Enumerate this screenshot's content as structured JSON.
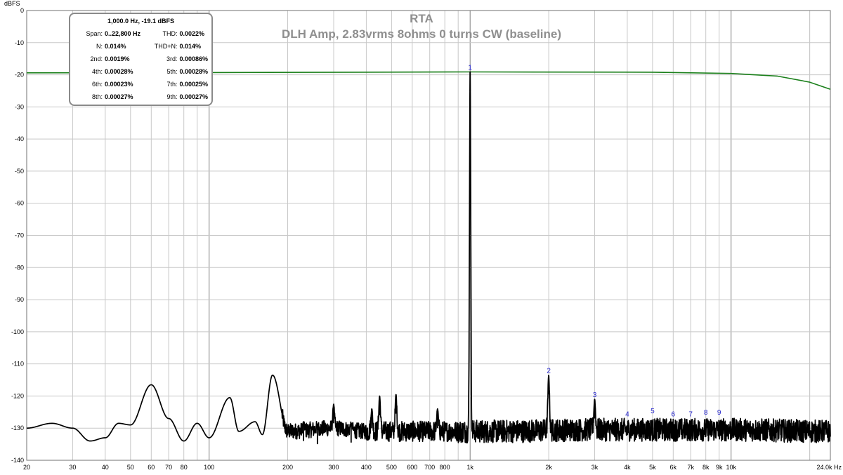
{
  "chart_data": {
    "type": "line",
    "title": "RTA",
    "subtitle": "DLH Amp, 2.83vrms 8ohms 0 turns CW (baseline)",
    "ylabel": "dBFS",
    "xlabel_unit": "Hz",
    "x_scale": "log",
    "xlim": [
      20,
      24000
    ],
    "ylim": [
      -140,
      0
    ],
    "y_ticks": [
      0,
      -10,
      -20,
      -30,
      -40,
      -50,
      -60,
      -70,
      -80,
      -90,
      -100,
      -110,
      -120,
      -130,
      -140
    ],
    "x_ticks": [
      {
        "v": 20,
        "label": "20"
      },
      {
        "v": 30,
        "label": "30"
      },
      {
        "v": 40,
        "label": "40"
      },
      {
        "v": 50,
        "label": "50"
      },
      {
        "v": 60,
        "label": "60"
      },
      {
        "v": 70,
        "label": "70"
      },
      {
        "v": 80,
        "label": "80"
      },
      {
        "v": 100,
        "label": "100"
      },
      {
        "v": 200,
        "label": "200"
      },
      {
        "v": 300,
        "label": "300"
      },
      {
        "v": 400,
        "label": "400"
      },
      {
        "v": 500,
        "label": "500"
      },
      {
        "v": 600,
        "label": "600"
      },
      {
        "v": 700,
        "label": "700"
      },
      {
        "v": 800,
        "label": "800"
      },
      {
        "v": 1000,
        "label": "1k"
      },
      {
        "v": 2000,
        "label": "2k"
      },
      {
        "v": 3000,
        "label": "3k"
      },
      {
        "v": 4000,
        "label": "4k"
      },
      {
        "v": 5000,
        "label": "5k"
      },
      {
        "v": 6000,
        "label": "6k"
      },
      {
        "v": 7000,
        "label": "7k"
      },
      {
        "v": 8000,
        "label": "8k"
      },
      {
        "v": 9000,
        "label": "9k"
      },
      {
        "v": 10000,
        "label": "10k"
      },
      {
        "v": 24000,
        "label": "24.0k Hz"
      }
    ],
    "grid": true,
    "colors": {
      "spectrum": "#000000",
      "level": "#1a7f1a",
      "harmonic_marker": "#2222cc",
      "title": "#8f8f8f",
      "grid": "#c8c8c8",
      "grid_major": "#808080"
    },
    "series": [
      {
        "key": "level",
        "points": [
          [
            20,
            -19.4
          ],
          [
            100,
            -19.3
          ],
          [
            1000,
            -19.1
          ],
          [
            5000,
            -19.2
          ],
          [
            10000,
            -19.6
          ],
          [
            15000,
            -20.4
          ],
          [
            20000,
            -22.3
          ],
          [
            24000,
            -24.5
          ]
        ]
      },
      {
        "key": "spectrum",
        "floor_points": [
          [
            20,
            -130
          ],
          [
            25,
            -128.5
          ],
          [
            30,
            -130
          ],
          [
            35,
            -134
          ],
          [
            40,
            -133
          ],
          [
            45,
            -128.5
          ],
          [
            50,
            -129
          ],
          [
            60,
            -116.5
          ],
          [
            70,
            -127
          ],
          [
            80,
            -134
          ],
          [
            90,
            -128.5
          ],
          [
            100,
            -133
          ],
          [
            120,
            -120.5
          ],
          [
            130,
            -131
          ],
          [
            150,
            -128
          ],
          [
            160,
            -132
          ],
          [
            175,
            -113.5
          ],
          [
            200,
            -131
          ],
          [
            300,
            -130
          ],
          [
            400,
            -131
          ],
          [
            600,
            -131
          ],
          [
            900,
            -131
          ],
          [
            1200,
            -131
          ],
          [
            3000,
            -130.5
          ],
          [
            10000,
            -130.5
          ],
          [
            24000,
            -131
          ]
        ],
        "peaks": [
          [
            230,
            -128
          ],
          [
            260,
            -129
          ],
          [
            300,
            -122.5
          ],
          [
            350,
            -128.5
          ],
          [
            420,
            -124
          ],
          [
            450,
            -120
          ],
          [
            520,
            -119.5
          ],
          [
            750,
            -124
          ],
          [
            1000,
            -19.1
          ],
          [
            2000,
            -113.5
          ],
          [
            3000,
            -121
          ]
        ]
      }
    ],
    "harmonic_markers": [
      {
        "label": "1",
        "freq": 1000,
        "db": -19.1
      },
      {
        "label": "2",
        "freq": 2000,
        "db": -113.5
      },
      {
        "label": "3",
        "freq": 3000,
        "db": -121
      },
      {
        "label": "4",
        "freq": 4000,
        "db": -127
      },
      {
        "label": "5",
        "freq": 5000,
        "db": -126
      },
      {
        "label": "6",
        "freq": 6000,
        "db": -127
      },
      {
        "label": "7",
        "freq": 7000,
        "db": -127
      },
      {
        "label": "8",
        "freq": 8000,
        "db": -126.5
      },
      {
        "label": "9",
        "freq": 9000,
        "db": -126.5
      }
    ]
  },
  "info": {
    "header": "1,000.0 Hz, -19.1 dBFS",
    "rows": [
      [
        {
          "label": "Span:",
          "value": "0..22,800 Hz"
        },
        {
          "label": "THD:",
          "value": "0.0022%"
        }
      ],
      [
        {
          "label": "N:",
          "value": "0.014%"
        },
        {
          "label": "THD+N:",
          "value": "0.014%"
        }
      ],
      [
        {
          "label": "2nd:",
          "value": "0.0019%"
        },
        {
          "label": "3rd:",
          "value": "0.00086%"
        }
      ],
      [
        {
          "label": "4th:",
          "value": "0.00028%"
        },
        {
          "label": "5th:",
          "value": "0.00028%"
        }
      ],
      [
        {
          "label": "6th:",
          "value": "0.00023%"
        },
        {
          "label": "7th:",
          "value": "0.00025%"
        }
      ],
      [
        {
          "label": "8th:",
          "value": "0.00027%"
        },
        {
          "label": "9th:",
          "value": "0.00027%"
        }
      ]
    ]
  }
}
